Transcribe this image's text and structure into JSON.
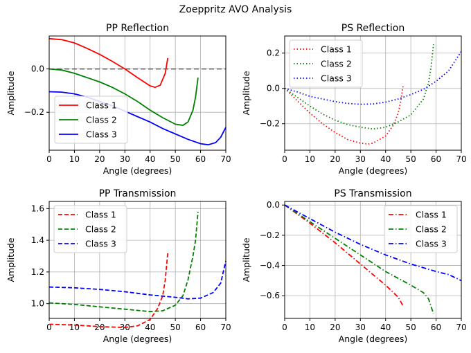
{
  "title": "Zoeppritz AVO Analysis",
  "chart_data": [
    {
      "type": "line",
      "title": "PP Reflection",
      "xlabel": "Angle (degrees)",
      "ylabel": "Amplitude",
      "xlim": [
        0,
        70
      ],
      "ylim": [
        -0.375,
        0.152
      ],
      "xticks": [
        0,
        10,
        20,
        30,
        40,
        50,
        60,
        70
      ],
      "yticks": [
        -0.2,
        0.0
      ],
      "ytick_labels": [
        "−0.2",
        "0.0"
      ],
      "grid": true,
      "legend": "lower-left",
      "linestyle": "solid",
      "hline": 0,
      "series": [
        {
          "name": "Class 1",
          "color": "#ff0000",
          "x": [
            0,
            5,
            10,
            15,
            20,
            25,
            30,
            35,
            40,
            42,
            44,
            46,
            47
          ],
          "y": [
            0.14,
            0.135,
            0.12,
            0.095,
            0.067,
            0.035,
            0.0,
            -0.04,
            -0.078,
            -0.085,
            -0.075,
            -0.02,
            0.05
          ]
        },
        {
          "name": "Class 2",
          "color": "#008000",
          "x": [
            0,
            5,
            10,
            15,
            20,
            25,
            30,
            35,
            40,
            45,
            50,
            53,
            55,
            57,
            58,
            59
          ],
          "y": [
            0.0,
            -0.005,
            -0.02,
            -0.04,
            -0.06,
            -0.085,
            -0.115,
            -0.15,
            -0.19,
            -0.225,
            -0.255,
            -0.26,
            -0.245,
            -0.19,
            -0.13,
            -0.04
          ]
        },
        {
          "name": "Class 3",
          "color": "#0000ff",
          "x": [
            0,
            5,
            10,
            15,
            20,
            25,
            30,
            35,
            40,
            45,
            50,
            55,
            60,
            63,
            66,
            68,
            70
          ],
          "y": [
            -0.105,
            -0.107,
            -0.115,
            -0.13,
            -0.15,
            -0.17,
            -0.195,
            -0.22,
            -0.245,
            -0.275,
            -0.3,
            -0.325,
            -0.345,
            -0.35,
            -0.34,
            -0.315,
            -0.27
          ]
        }
      ]
    },
    {
      "type": "line",
      "title": "PS Reflection",
      "xlabel": "Angle (degrees)",
      "ylabel": "Amplitude",
      "xlim": [
        0,
        70
      ],
      "ylim": [
        -0.35,
        0.297
      ],
      "xticks": [
        0,
        10,
        20,
        30,
        40,
        50,
        60,
        70
      ],
      "yticks": [
        -0.2,
        0.0,
        0.2
      ],
      "ytick_labels": [
        "−0.2",
        "0.0",
        "0.2"
      ],
      "grid": true,
      "legend": "upper-left",
      "linestyle": "dotted",
      "series": [
        {
          "name": "Class 1",
          "color": "#ff0000",
          "x": [
            0,
            5,
            10,
            15,
            20,
            25,
            30,
            33,
            35,
            40,
            43,
            45,
            46,
            47
          ],
          "y": [
            0,
            -0.07,
            -0.14,
            -0.2,
            -0.25,
            -0.29,
            -0.31,
            -0.315,
            -0.31,
            -0.27,
            -0.21,
            -0.14,
            -0.07,
            0.02
          ]
        },
        {
          "name": "Class 2",
          "color": "#008000",
          "x": [
            0,
            5,
            10,
            15,
            20,
            25,
            30,
            35,
            40,
            45,
            50,
            55,
            57,
            58,
            59
          ],
          "y": [
            0,
            -0.05,
            -0.1,
            -0.145,
            -0.18,
            -0.205,
            -0.22,
            -0.23,
            -0.22,
            -0.19,
            -0.15,
            -0.06,
            0.03,
            0.12,
            0.25
          ]
        },
        {
          "name": "Class 3",
          "color": "#0000ff",
          "x": [
            0,
            5,
            10,
            15,
            20,
            25,
            30,
            35,
            40,
            45,
            50,
            55,
            60,
            65,
            70
          ],
          "y": [
            0,
            -0.02,
            -0.045,
            -0.06,
            -0.075,
            -0.085,
            -0.09,
            -0.088,
            -0.078,
            -0.06,
            -0.035,
            -0.005,
            0.04,
            0.1,
            0.21
          ]
        }
      ]
    },
    {
      "type": "line",
      "title": "PP Transmission",
      "xlabel": "Angle (degrees)",
      "ylabel": "Amplitude",
      "xlim": [
        0,
        70
      ],
      "ylim": [
        0.907,
        1.645
      ],
      "xticks": [
        0,
        10,
        20,
        30,
        40,
        50,
        60,
        70
      ],
      "yticks": [
        1.0,
        1.2,
        1.4,
        1.6
      ],
      "ytick_labels": [
        "1.0",
        "1.2",
        "1.4",
        "1.6"
      ],
      "grid": true,
      "legend": "upper-left",
      "linestyle": "dashed",
      "series": [
        {
          "name": "Class 1",
          "color": "#ff0000",
          "x": [
            0,
            10,
            20,
            30,
            35,
            40,
            43,
            45,
            46,
            47
          ],
          "y": [
            0.87,
            0.865,
            0.855,
            0.85,
            0.86,
            0.9,
            0.97,
            1.05,
            1.15,
            1.32
          ]
        },
        {
          "name": "Class 2",
          "color": "#008000",
          "x": [
            0,
            10,
            20,
            30,
            40,
            45,
            50,
            53,
            55,
            57,
            58,
            59
          ],
          "y": [
            1.005,
            0.995,
            0.98,
            0.965,
            0.95,
            0.955,
            0.99,
            1.05,
            1.15,
            1.3,
            1.4,
            1.58
          ]
        },
        {
          "name": "Class 3",
          "color": "#0000ff",
          "x": [
            0,
            10,
            20,
            30,
            40,
            50,
            55,
            60,
            65,
            68,
            70
          ],
          "y": [
            1.105,
            1.1,
            1.09,
            1.075,
            1.055,
            1.04,
            1.03,
            1.035,
            1.07,
            1.13,
            1.27
          ]
        }
      ]
    },
    {
      "type": "line",
      "title": "PS Transmission",
      "xlabel": "Angle (degrees)",
      "ylabel": "Amplitude",
      "xlim": [
        0,
        70
      ],
      "ylim": [
        -0.75,
        0.024
      ],
      "xticks": [
        0,
        10,
        20,
        30,
        40,
        50,
        60,
        70
      ],
      "yticks": [
        -0.6,
        -0.4,
        -0.2,
        0.0
      ],
      "ytick_labels": [
        "−0.6",
        "−0.4",
        "−0.2",
        "0.0"
      ],
      "grid": true,
      "legend": "upper-right",
      "linestyle": "dashdot",
      "series": [
        {
          "name": "Class 1",
          "color": "#ff0000",
          "x": [
            0,
            10,
            20,
            30,
            40,
            45,
            47
          ],
          "y": [
            0,
            -0.12,
            -0.25,
            -0.39,
            -0.53,
            -0.61,
            -0.67
          ]
        },
        {
          "name": "Class 2",
          "color": "#008000",
          "x": [
            0,
            10,
            20,
            30,
            40,
            50,
            55,
            57,
            59
          ],
          "y": [
            0,
            -0.11,
            -0.22,
            -0.33,
            -0.44,
            -0.53,
            -0.58,
            -0.62,
            -0.72
          ]
        },
        {
          "name": "Class 3",
          "color": "#0000ff",
          "x": [
            0,
            10,
            20,
            30,
            40,
            50,
            60,
            65,
            70
          ],
          "y": [
            0,
            -0.09,
            -0.18,
            -0.26,
            -0.33,
            -0.39,
            -0.44,
            -0.46,
            -0.5
          ]
        }
      ]
    }
  ]
}
